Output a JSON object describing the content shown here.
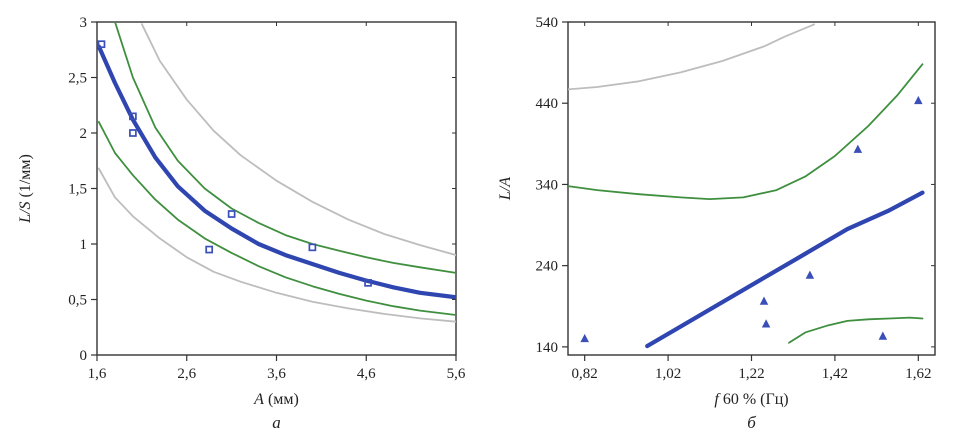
{
  "colors": {
    "fit": "#2f45b0",
    "confidence": "#3f8f3f",
    "prediction": "#bdbdbd",
    "points": "#3a4fb8",
    "axis": "#333333"
  },
  "chart_data": [
    {
      "type": "scatter",
      "panel": "a",
      "caption": "a",
      "xlabel_var": "A",
      "xlabel_unit": "(мм)",
      "ylabel_var": "L/S",
      "ylabel_unit": "(1/мм)",
      "xlim": [
        1.6,
        5.6
      ],
      "ylim": [
        0,
        3
      ],
      "x_ticks": [
        1.6,
        2.6,
        3.6,
        4.6,
        5.6
      ],
      "x_tick_labels": [
        "1,6",
        "2,6",
        "3,6",
        "4,6",
        "5,6"
      ],
      "y_ticks": [
        0,
        0.5,
        1,
        1.5,
        2,
        2.5,
        3
      ],
      "y_tick_labels": [
        "0",
        "0,5",
        "1",
        "1,5",
        "2",
        "2,5",
        "3"
      ],
      "marker": "square",
      "points": {
        "x": [
          1.65,
          2.0,
          2.0,
          2.85,
          3.1,
          4.0,
          4.62
        ],
        "y": [
          2.8,
          2.15,
          2.0,
          0.95,
          1.27,
          0.97,
          0.65
        ]
      },
      "series": [
        {
          "name": "fit",
          "role": "fit",
          "x": [
            1.62,
            1.8,
            2.0,
            2.25,
            2.5,
            2.8,
            3.1,
            3.4,
            3.7,
            4.0,
            4.3,
            4.6,
            4.9,
            5.2,
            5.6
          ],
          "y": [
            2.78,
            2.45,
            2.12,
            1.78,
            1.52,
            1.3,
            1.14,
            1.0,
            0.9,
            0.82,
            0.74,
            0.67,
            0.61,
            0.56,
            0.52
          ]
        },
        {
          "name": "confidence upper",
          "role": "confidence",
          "x": [
            1.8,
            2.0,
            2.25,
            2.5,
            2.8,
            3.1,
            3.4,
            3.7,
            4.0,
            4.3,
            4.6,
            4.9,
            5.2,
            5.6
          ],
          "y": [
            3.0,
            2.5,
            2.05,
            1.75,
            1.5,
            1.32,
            1.19,
            1.08,
            1.0,
            0.94,
            0.88,
            0.83,
            0.79,
            0.74
          ]
        },
        {
          "name": "confidence lower",
          "role": "confidence",
          "x": [
            1.62,
            1.8,
            2.0,
            2.25,
            2.5,
            2.8,
            3.1,
            3.4,
            3.7,
            4.0,
            4.3,
            4.6,
            4.9,
            5.2,
            5.6
          ],
          "y": [
            2.1,
            1.82,
            1.62,
            1.4,
            1.22,
            1.05,
            0.92,
            0.8,
            0.7,
            0.62,
            0.55,
            0.49,
            0.44,
            0.4,
            0.36
          ]
        },
        {
          "name": "prediction upper",
          "role": "prediction",
          "x": [
            2.1,
            2.3,
            2.6,
            2.9,
            3.2,
            3.6,
            4.0,
            4.4,
            4.8,
            5.2,
            5.6
          ],
          "y": [
            2.98,
            2.65,
            2.3,
            2.02,
            1.8,
            1.57,
            1.38,
            1.22,
            1.09,
            0.99,
            0.9
          ]
        },
        {
          "name": "prediction lower",
          "role": "prediction",
          "x": [
            1.62,
            1.8,
            2.0,
            2.3,
            2.6,
            2.9,
            3.2,
            3.6,
            4.0,
            4.4,
            4.8,
            5.2,
            5.6
          ],
          "y": [
            1.68,
            1.42,
            1.25,
            1.05,
            0.88,
            0.75,
            0.66,
            0.56,
            0.48,
            0.42,
            0.37,
            0.33,
            0.3
          ]
        }
      ]
    },
    {
      "type": "scatter",
      "panel": "b",
      "caption": "б",
      "xlabel_var": "f",
      "xlabel_unit": "60 % (Гц)",
      "ylabel_var": "L/A",
      "ylabel_unit": "",
      "xlim": [
        0.78,
        1.66
      ],
      "ylim": [
        130,
        540
      ],
      "x_ticks": [
        0.82,
        1.02,
        1.22,
        1.42,
        1.62
      ],
      "x_tick_labels": [
        "0,82",
        "1,02",
        "1,22",
        "1,42",
        "1,62"
      ],
      "y_ticks": [
        140,
        240,
        340,
        440,
        540
      ],
      "y_tick_labels": [
        "140",
        "240",
        "340",
        "440",
        "540"
      ],
      "marker": "triangle",
      "points": {
        "x": [
          0.82,
          1.25,
          1.255,
          1.36,
          1.475,
          1.535,
          1.62
        ],
        "y": [
          150,
          196,
          168,
          228,
          383,
          153,
          443
        ]
      },
      "series": [
        {
          "name": "fit",
          "role": "fit",
          "x": [
            0.97,
            1.05,
            1.15,
            1.25,
            1.35,
            1.45,
            1.55,
            1.63
          ],
          "y": [
            141,
            165,
            195,
            225,
            255,
            285,
            308,
            330
          ]
        },
        {
          "name": "confidence upper",
          "role": "confidence",
          "x": [
            0.78,
            0.85,
            0.95,
            1.05,
            1.12,
            1.2,
            1.28,
            1.35,
            1.42,
            1.5,
            1.57,
            1.63
          ],
          "y": [
            338,
            333,
            328,
            324,
            322,
            324,
            333,
            350,
            375,
            412,
            450,
            488
          ]
        },
        {
          "name": "confidence lower",
          "role": "confidence",
          "x": [
            1.31,
            1.35,
            1.4,
            1.45,
            1.5,
            1.55,
            1.6,
            1.63
          ],
          "y": [
            145,
            158,
            166,
            172,
            174,
            175,
            176,
            175
          ]
        },
        {
          "name": "prediction upper",
          "role": "prediction",
          "x": [
            0.78,
            0.85,
            0.95,
            1.05,
            1.15,
            1.25,
            1.3,
            1.37
          ],
          "y": [
            457,
            460,
            467,
            478,
            492,
            510,
            522,
            537
          ]
        }
      ]
    }
  ]
}
